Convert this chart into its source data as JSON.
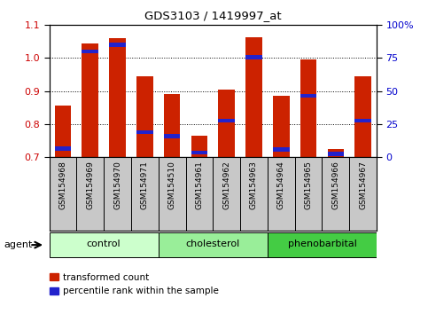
{
  "title": "GDS3103 / 1419997_at",
  "samples": [
    "GSM154968",
    "GSM154969",
    "GSM154970",
    "GSM154971",
    "GSM154510",
    "GSM154961",
    "GSM154962",
    "GSM154963",
    "GSM154964",
    "GSM154965",
    "GSM154966",
    "GSM154967"
  ],
  "bar_bottom": 0.7,
  "transformed_count": [
    0.855,
    1.045,
    1.06,
    0.945,
    0.89,
    0.765,
    0.905,
    1.063,
    0.885,
    0.997,
    0.725,
    0.945
  ],
  "percentile_rank": [
    0.725,
    1.02,
    1.04,
    0.775,
    0.763,
    0.713,
    0.81,
    1.003,
    0.723,
    0.885,
    0.71,
    0.81
  ],
  "groups": [
    {
      "label": "control",
      "start": 0,
      "end": 4,
      "color": "#ccffcc"
    },
    {
      "label": "cholesterol",
      "start": 4,
      "end": 8,
      "color": "#99ee99"
    },
    {
      "label": "phenobarbital",
      "start": 8,
      "end": 12,
      "color": "#44cc44"
    }
  ],
  "ylim": [
    0.7,
    1.1
  ],
  "yticks": [
    0.7,
    0.8,
    0.9,
    1.0,
    1.1
  ],
  "y2labels": [
    "0",
    "25",
    "50",
    "75",
    "100%"
  ],
  "bar_color": "#cc2200",
  "percentile_color": "#2222cc",
  "ylabel_color": "#cc0000",
  "y2label_color": "#0000cc",
  "bg_color": "#c8c8c8",
  "plot_bg": "#ffffff",
  "agent_label": "agent",
  "legend_tc": "transformed count",
  "legend_pr": "percentile rank within the sample",
  "figsize": [
    4.83,
    3.54
  ],
  "dpi": 100
}
